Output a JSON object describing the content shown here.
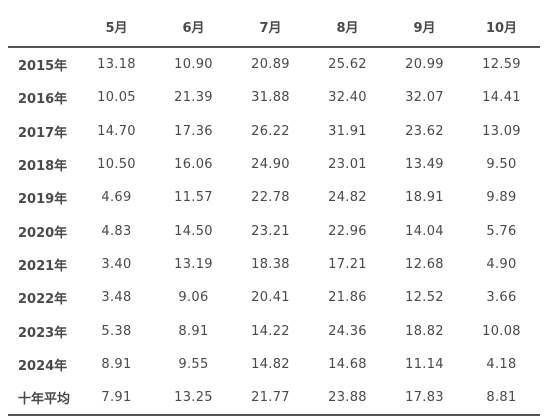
{
  "table": {
    "columns": [
      "",
      "5月",
      "6月",
      "7月",
      "8月",
      "9月",
      "10月"
    ],
    "rows": [
      {
        "label": "2015年",
        "values": [
          "13.18",
          "10.90",
          "20.89",
          "25.62",
          "20.99",
          "12.59"
        ]
      },
      {
        "label": "2016年",
        "values": [
          "10.05",
          "21.39",
          "31.88",
          "32.40",
          "32.07",
          "14.41"
        ]
      },
      {
        "label": "2017年",
        "values": [
          "14.70",
          "17.36",
          "26.22",
          "31.91",
          "23.62",
          "13.09"
        ]
      },
      {
        "label": "2018年",
        "values": [
          "10.50",
          "16.06",
          "24.90",
          "23.01",
          "13.49",
          "9.50"
        ]
      },
      {
        "label": "2019年",
        "values": [
          "4.69",
          "11.57",
          "22.78",
          "24.82",
          "18.91",
          "9.89"
        ]
      },
      {
        "label": "2020年",
        "values": [
          "4.83",
          "14.50",
          "23.21",
          "22.96",
          "14.04",
          "5.76"
        ]
      },
      {
        "label": "2021年",
        "values": [
          "3.40",
          "13.19",
          "18.38",
          "17.21",
          "12.68",
          "4.90"
        ]
      },
      {
        "label": "2022年",
        "values": [
          "3.48",
          "9.06",
          "20.41",
          "21.86",
          "12.52",
          "3.66"
        ]
      },
      {
        "label": "2023年",
        "values": [
          "5.38",
          "8.91",
          "14.22",
          "24.36",
          "18.82",
          "10.08"
        ]
      },
      {
        "label": "2024年",
        "values": [
          "8.91",
          "9.55",
          "14.82",
          "14.68",
          "11.14",
          "4.18"
        ]
      },
      {
        "label": "十年平均",
        "values": [
          "7.91",
          "13.25",
          "21.77",
          "23.88",
          "17.83",
          "8.81"
        ]
      }
    ]
  }
}
